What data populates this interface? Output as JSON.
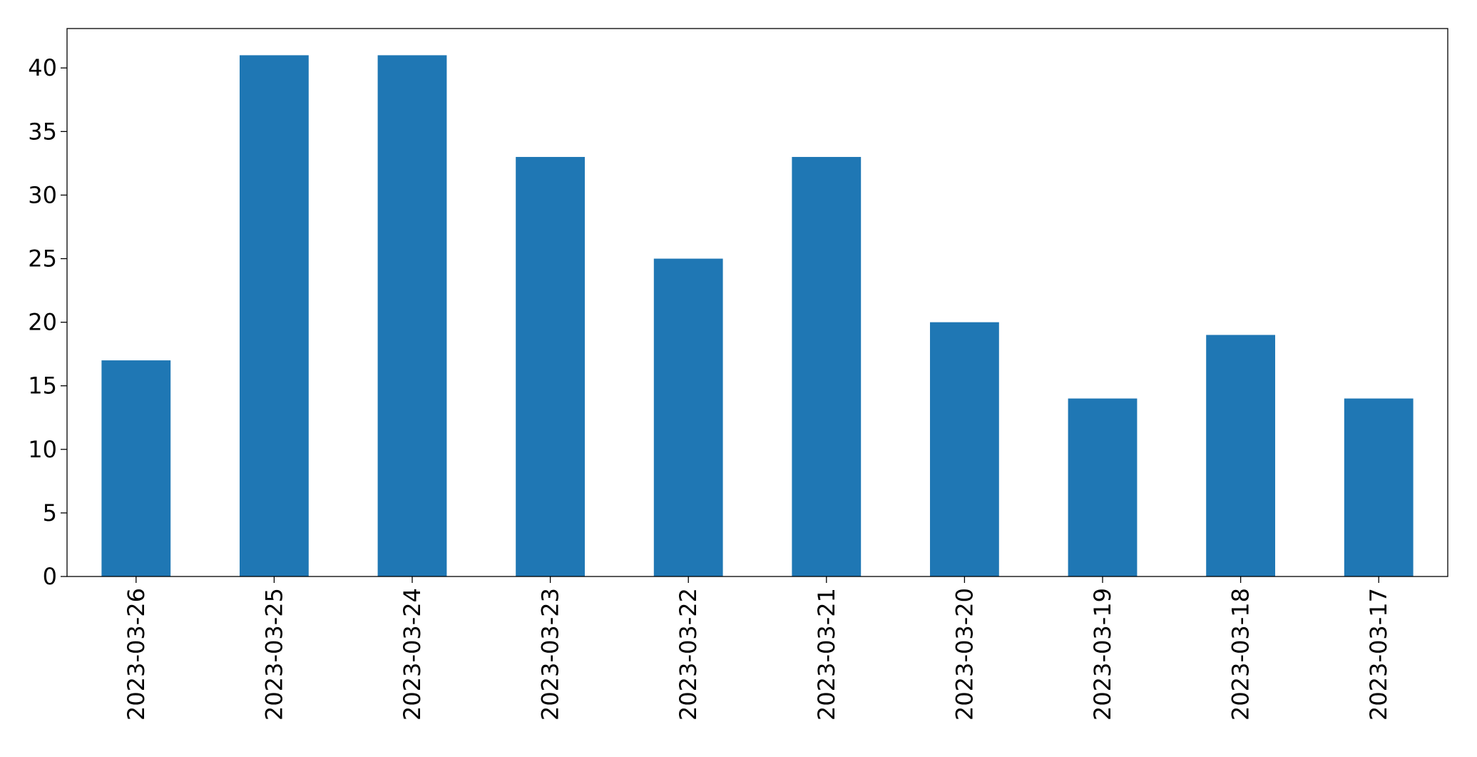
{
  "chart_data": {
    "type": "bar",
    "categories": [
      "2023-03-26",
      "2023-03-25",
      "2023-03-24",
      "2023-03-23",
      "2023-03-22",
      "2023-03-21",
      "2023-03-20",
      "2023-03-19",
      "2023-03-18",
      "2023-03-17"
    ],
    "values": [
      17,
      41,
      41,
      33,
      25,
      33,
      20,
      14,
      19,
      14
    ],
    "color": "#1f77b4",
    "ylim": [
      0,
      43.1
    ],
    "yticks": [
      0,
      5,
      10,
      15,
      20,
      25,
      30,
      35,
      40
    ],
    "grid": false
  }
}
